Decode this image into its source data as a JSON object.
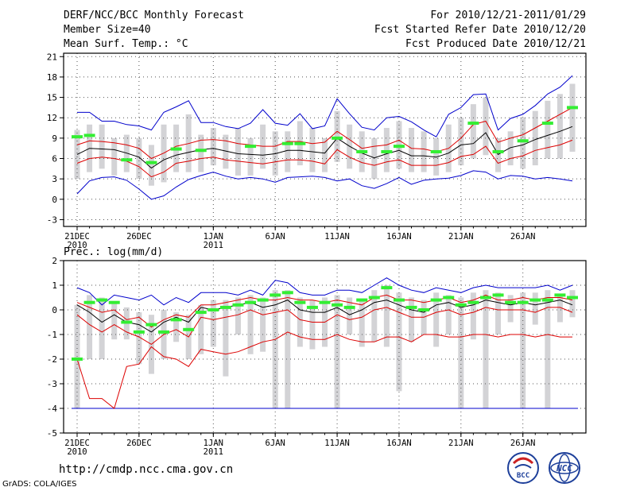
{
  "header": {
    "title": "DERF/NCC/BCC Monthly Forecast",
    "member_size": "Member Size=40",
    "variable": "Mean Surf. Temp.: °C",
    "fcst_for": "For 2010/12/21-2011/01/29",
    "fcst_started": "Fcst Started Refer Date 2010/12/20",
    "fcst_produced": "Fcst Produced Date 2010/12/21"
  },
  "footer": {
    "url": "http://cmdp.ncc.cma.gov.cn",
    "grads": "GrADS: COLA/IGES",
    "logo_bcc": "BCC",
    "logo_ncc": "NCC"
  },
  "colors": {
    "box": "#d3d3d6",
    "max": "#0000cc",
    "min": "#0000cc",
    "upper": "#dd0000",
    "lower": "#dd0000",
    "mean": "#000000",
    "obs": "#33ee33",
    "grid": "#555555"
  },
  "chart_data": [
    {
      "type": "box-band",
      "name": "temperature",
      "title": "Mean Surf. Temp.: °C",
      "ylabel": "°C",
      "ylim": [
        -4,
        21.5
      ],
      "yticks": [
        21,
        18,
        15,
        12,
        9,
        6,
        3,
        0,
        -3
      ],
      "xtick_labels": [
        {
          "day": 0,
          "lines": [
            "21DEC",
            "2010"
          ]
        },
        {
          "day": 5,
          "lines": [
            "26DEC"
          ]
        },
        {
          "day": 11,
          "lines": [
            "1JAN",
            "2011"
          ]
        },
        {
          "day": 16,
          "lines": [
            "6JAN"
          ]
        },
        {
          "day": 21,
          "lines": [
            "11JAN"
          ]
        },
        {
          "day": 26,
          "lines": [
            "16JAN"
          ]
        },
        {
          "day": 31,
          "lines": [
            "21JAN"
          ]
        },
        {
          "day": 36,
          "lines": [
            "26JAN"
          ]
        }
      ],
      "max": [
        0.8,
        2.7,
        3.2,
        3.3,
        2.8,
        1.5,
        0.0,
        0.5,
        1.8,
        2.9,
        3.5,
        4.0,
        3.4,
        3.0,
        3.2,
        3.0,
        2.5,
        3.2,
        3.3,
        3.4,
        3.2,
        2.7,
        3.0,
        2.0,
        1.6,
        2.3,
        3.2,
        2.2,
        2.8,
        3.0,
        3.1,
        3.5,
        4.2,
        4.0,
        3.0,
        3.5,
        3.4,
        3.0,
        3.2,
        3.0,
        2.7
      ],
      "upper": [
        8.0,
        8.6,
        8.5,
        8.3,
        8.0,
        7.5,
        6.0,
        6.8,
        7.8,
        8.2,
        8.7,
        8.8,
        8.6,
        8.2,
        8.0,
        7.8,
        7.8,
        8.5,
        8.5,
        8.2,
        8.4,
        10.0,
        8.8,
        7.5,
        7.8,
        8.0,
        8.7,
        7.5,
        7.4,
        7.0,
        7.5,
        9.0,
        11.0,
        11.5,
        8.4,
        9.0,
        9.5,
        10.5,
        11.5,
        12.5,
        13.5
      ],
      "mean": [
        6.6,
        7.5,
        7.4,
        7.3,
        6.8,
        6.2,
        4.6,
        5.8,
        6.5,
        6.9,
        7.3,
        7.5,
        7.1,
        6.7,
        6.6,
        6.5,
        6.7,
        7.2,
        7.2,
        7.0,
        6.8,
        9.0,
        7.8,
        6.8,
        6.1,
        6.7,
        7.2,
        6.4,
        6.4,
        6.2,
        6.8,
        8.0,
        8.2,
        9.8,
        6.6,
        7.6,
        8.0,
        8.8,
        9.4,
        10.0,
        10.7
      ],
      "lower": [
        5.3,
        6.0,
        6.2,
        6.0,
        5.6,
        4.8,
        3.3,
        4.0,
        5.3,
        5.6,
        6.0,
        6.2,
        5.8,
        5.6,
        5.4,
        5.2,
        5.5,
        5.8,
        5.8,
        5.6,
        5.2,
        7.3,
        6.2,
        5.4,
        5.0,
        5.5,
        5.8,
        5.0,
        5.0,
        5.0,
        5.4,
        6.3,
        6.6,
        7.8,
        5.3,
        6.0,
        6.4,
        7.2,
        7.6,
        8.0,
        8.7
      ],
      "min": [
        0.8,
        2.7,
        3.2,
        3.3,
        2.8,
        1.5,
        0.0,
        0.5,
        1.8,
        2.9,
        3.5,
        4.0,
        3.4,
        3.0,
        3.2,
        3.0,
        2.5,
        3.2,
        3.3,
        3.4,
        3.2,
        2.7,
        3.0,
        2.0,
        1.6,
        2.3,
        3.2,
        2.2,
        2.8,
        3.0,
        3.1,
        3.5,
        4.2,
        4.0,
        3.0,
        3.5,
        3.4,
        3.0,
        3.2,
        3.0,
        2.7
      ],
      "maxline": [
        12.8,
        12.8,
        11.5,
        11.5,
        11.0,
        10.8,
        10.2,
        12.8,
        13.6,
        14.5,
        11.3,
        11.3,
        10.7,
        10.4,
        11.2,
        13.2,
        11.2,
        10.9,
        12.6,
        10.4,
        10.8,
        14.8,
        12.6,
        10.6,
        10.2,
        12.0,
        12.2,
        11.4,
        10.2,
        9.2,
        12.5,
        13.5,
        15.4,
        15.5,
        10.2,
        11.9,
        12.5,
        13.8,
        15.5,
        16.5,
        18.2
      ],
      "minline": [
        0.8,
        2.7,
        3.2,
        3.3,
        2.8,
        1.5,
        0.0,
        0.5,
        1.8,
        2.9,
        3.5,
        4.0,
        3.4,
        3.0,
        3.2,
        3.0,
        2.5,
        3.2,
        3.3,
        3.4,
        3.2,
        2.7,
        3.0,
        2.0,
        1.6,
        2.3,
        3.2,
        2.2,
        2.8,
        3.0,
        3.1,
        3.5,
        4.2,
        4.0,
        3.0,
        3.5,
        3.4,
        3.0,
        3.2,
        3.0,
        2.7
      ],
      "box_hi": [
        10.2,
        11.0,
        11.0,
        9.0,
        9.5,
        9.0,
        8.0,
        11.0,
        11.0,
        12.5,
        9.5,
        10.5,
        9.5,
        10.5,
        9.0,
        11.0,
        10.0,
        10.0,
        11.5,
        10.5,
        9.0,
        13.0,
        11.0,
        10.0,
        9.0,
        10.5,
        11.5,
        10.5,
        10.0,
        9.0,
        11.0,
        12.0,
        14.0,
        15.0,
        9.0,
        10.0,
        12.0,
        13.0,
        14.5,
        15.5,
        17.0
      ],
      "box_lo": [
        3.0,
        4.0,
        4.5,
        3.5,
        4.0,
        3.0,
        2.0,
        2.5,
        4.0,
        4.0,
        4.0,
        5.0,
        4.5,
        3.5,
        3.5,
        4.5,
        3.5,
        4.0,
        5.0,
        4.0,
        4.0,
        5.5,
        4.5,
        4.0,
        3.0,
        4.0,
        4.5,
        4.0,
        4.0,
        3.5,
        4.0,
        5.0,
        6.0,
        6.5,
        4.0,
        5.0,
        4.5,
        5.0,
        6.0,
        6.0,
        7.0
      ],
      "obs": [
        9.2,
        9.4,
        null,
        null,
        5.8,
        null,
        5.4,
        null,
        7.4,
        null,
        7.2,
        null,
        null,
        null,
        7.8,
        null,
        null,
        8.2,
        8.2,
        null,
        null,
        9.0,
        null,
        7.0,
        null,
        7.0,
        7.8,
        null,
        null,
        7.0,
        null,
        null,
        11.2,
        null,
        7.0,
        null,
        8.6,
        null,
        11.2,
        null,
        13.5
      ]
    },
    {
      "type": "box-band",
      "name": "precipitation",
      "title": "Prec.: log(mm/d)",
      "ylabel": "log(mm/d)",
      "ylim": [
        -5,
        2
      ],
      "yticks": [
        2,
        1,
        0,
        -1,
        -2,
        -3,
        -4,
        -5
      ],
      "xtick_labels": [
        {
          "day": 0,
          "lines": [
            "21DEC",
            "2010"
          ]
        },
        {
          "day": 5,
          "lines": [
            "26DEC"
          ]
        },
        {
          "day": 11,
          "lines": [
            "1JAN",
            "2011"
          ]
        },
        {
          "day": 16,
          "lines": [
            "6JAN"
          ]
        },
        {
          "day": 21,
          "lines": [
            "11JAN"
          ]
        },
        {
          "day": 26,
          "lines": [
            "16JAN"
          ]
        },
        {
          "day": 31,
          "lines": [
            "21JAN"
          ]
        },
        {
          "day": 36,
          "lines": [
            "26JAN"
          ]
        }
      ],
      "maxline": [
        0.9,
        0.7,
        0.2,
        0.6,
        0.5,
        0.4,
        0.6,
        0.2,
        0.5,
        0.3,
        0.7,
        0.7,
        0.7,
        0.6,
        0.8,
        0.6,
        1.2,
        1.1,
        0.7,
        0.6,
        0.6,
        0.8,
        0.8,
        0.7,
        1.0,
        1.3,
        1.0,
        0.8,
        0.7,
        0.9,
        0.8,
        0.7,
        0.9,
        1.0,
        0.9,
        0.9,
        0.9,
        0.9,
        1.0,
        0.8,
        1.0
      ],
      "upper": [
        0.3,
        0.1,
        -0.1,
        0.0,
        -0.4,
        -0.3,
        -0.7,
        -0.4,
        -0.2,
        -0.3,
        0.2,
        0.2,
        0.3,
        0.4,
        0.5,
        0.4,
        0.4,
        0.5,
        0.4,
        0.4,
        0.3,
        0.4,
        0.3,
        0.2,
        0.5,
        0.6,
        0.4,
        0.4,
        0.3,
        0.4,
        0.5,
        0.3,
        0.4,
        0.6,
        0.4,
        0.4,
        0.5,
        0.4,
        0.5,
        0.5,
        0.4
      ],
      "mean": [
        0.2,
        -0.1,
        -0.5,
        -0.2,
        -0.5,
        -0.6,
        -0.9,
        -0.5,
        -0.3,
        -0.5,
        0.1,
        0.0,
        0.1,
        0.2,
        0.3,
        0.1,
        0.2,
        0.4,
        0.0,
        -0.1,
        -0.1,
        0.1,
        -0.2,
        0.0,
        0.3,
        0.4,
        0.2,
        0.0,
        -0.1,
        0.2,
        0.3,
        0.1,
        0.2,
        0.4,
        0.3,
        0.2,
        0.3,
        0.2,
        0.3,
        0.4,
        0.2
      ],
      "lower": [
        -0.2,
        -0.6,
        -0.9,
        -0.6,
        -0.9,
        -1.1,
        -1.4,
        -1.0,
        -0.8,
        -1.1,
        -0.3,
        -0.4,
        -0.3,
        -0.2,
        0.0,
        -0.2,
        -0.1,
        0.0,
        -0.4,
        -0.5,
        -0.5,
        -0.2,
        -0.4,
        -0.3,
        0.0,
        0.1,
        -0.1,
        -0.3,
        -0.3,
        -0.1,
        0.0,
        -0.2,
        -0.1,
        0.1,
        0.0,
        0.0,
        0.0,
        -0.1,
        0.1,
        0.1,
        -0.1
      ],
      "minline": [
        -2.0,
        -3.6,
        -3.6,
        -4.0,
        -2.3,
        -2.2,
        -1.5,
        -1.9,
        -2.0,
        -2.3,
        -1.6,
        -1.7,
        -1.8,
        -1.7,
        -1.5,
        -1.3,
        -1.2,
        -0.9,
        -1.1,
        -1.2,
        -1.2,
        -1.0,
        -1.2,
        -1.3,
        -1.3,
        -1.1,
        -1.1,
        -1.3,
        -1.0,
        -1.0,
        -1.1,
        -1.1,
        -1.0,
        -1.0,
        -1.1,
        -1.0,
        -1.0,
        -1.1,
        -1.0,
        -1.1,
        -1.1
      ],
      "box_hi": [
        0.2,
        0.6,
        0.5,
        0.3,
        0.1,
        -0.1,
        -0.2,
        0.0,
        -0.1,
        -0.2,
        0.2,
        0.4,
        0.4,
        0.5,
        0.6,
        0.5,
        0.8,
        0.8,
        0.5,
        0.4,
        0.5,
        0.6,
        0.5,
        0.4,
        0.8,
        1.0,
        0.7,
        0.5,
        0.4,
        0.7,
        0.6,
        0.5,
        0.7,
        0.8,
        0.7,
        0.6,
        0.7,
        0.7,
        0.8,
        0.6,
        0.8
      ],
      "box_lo": [
        -4.0,
        -2.0,
        -2.0,
        -1.2,
        -1.2,
        -2.2,
        -2.6,
        -2.0,
        -1.3,
        -2.0,
        -1.8,
        -1.5,
        -2.7,
        -1.0,
        -1.8,
        -1.7,
        -4.0,
        -4.0,
        -1.5,
        -1.6,
        -1.5,
        -4.0,
        -1.0,
        -1.5,
        -1.3,
        -1.5,
        -3.3,
        -1.3,
        -1.0,
        -1.5,
        -1.0,
        -4.0,
        -1.2,
        -4.0,
        -1.0,
        -0.5,
        -4.0,
        -0.6,
        -4.0,
        -0.5,
        -0.3
      ],
      "box_floor": -4,
      "obs": [
        -2.0,
        0.3,
        0.4,
        0.3,
        -0.5,
        -0.9,
        -0.6,
        -0.9,
        -0.4,
        -0.8,
        -0.1,
        0.0,
        0.1,
        0.2,
        0.3,
        0.4,
        0.6,
        0.7,
        0.3,
        0.1,
        0.3,
        0.2,
        0.1,
        0.4,
        0.5,
        0.9,
        0.4,
        0.1,
        0.0,
        0.4,
        0.5,
        0.2,
        0.3,
        0.5,
        0.6,
        0.3,
        0.3,
        0.4,
        0.4,
        0.6,
        0.5
      ]
    }
  ]
}
